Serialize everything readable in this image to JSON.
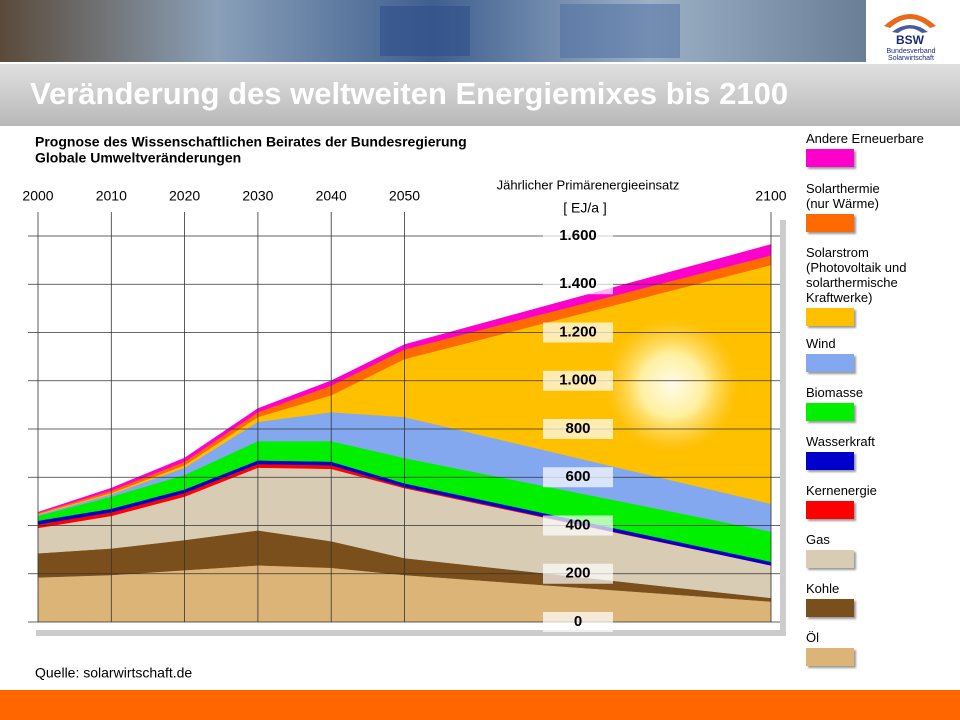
{
  "header": {
    "logo": "BSW",
    "logo_subtitle": "Bundesverband Solarwirtschaft"
  },
  "chart_data": {
    "type": "stacked_area",
    "title": "Veränderung des weltweiten Energiemixes bis 2100",
    "subtitle": [
      "Prognose des Wissenschaftlichen Beirates der Bundesregierung",
      "Globale Umweltveränderungen"
    ],
    "y_label": "Jährlicher Primärenergieeinsatz",
    "y_unit": "[ EJ/a ]",
    "source": "Quelle: solarwirtschaft.de",
    "x": [
      2000,
      2010,
      2020,
      2030,
      2040,
      2050,
      2100
    ],
    "xlim": [
      2000,
      2100
    ],
    "xticks": [
      2000,
      2010,
      2020,
      2030,
      2040,
      2050,
      2100
    ],
    "ylim": [
      0,
      1600
    ],
    "yticks": [
      0,
      200,
      400,
      600,
      800,
      {
        "value": 1000,
        "label": "1.000"
      },
      {
        "value": 1200,
        "label": "1.200"
      },
      {
        "value": 1400,
        "label": "1.400"
      },
      {
        "value": 1600,
        "label": "1.600"
      }
    ],
    "grid": true,
    "series": [
      {
        "name": "Öl",
        "color": "#dcb478",
        "values": [
          185,
          195,
          215,
          235,
          225,
          195,
          85
        ]
      },
      {
        "name": "Kohle",
        "color": "#7b4f1b",
        "values": [
          100,
          110,
          125,
          145,
          110,
          70,
          15
        ]
      },
      {
        "name": "Gas",
        "color": "#d8cdb4",
        "values": [
          105,
          135,
          180,
          260,
          300,
          290,
          135
        ]
      },
      {
        "name": "Kernenergie",
        "color": "#ff0000",
        "values": [
          15,
          15,
          15,
          15,
          15,
          5,
          0
        ]
      },
      {
        "name": "Wasserkraft",
        "color": "#0000cc",
        "values": [
          15,
          15,
          15,
          15,
          15,
          15,
          15
        ]
      },
      {
        "name": "Biomasse",
        "color": "#00f000",
        "values": [
          20,
          50,
          60,
          80,
          85,
          105,
          125
        ]
      },
      {
        "name": "Wind",
        "color": "#84a8f0",
        "values": [
          5,
          10,
          30,
          80,
          120,
          170,
          115
        ]
      },
      {
        "name": "Solarstrom\n(Photovoltaik und\nsolarthermische\nKraftwerke)",
        "color": "#ffc000",
        "values": [
          3,
          5,
          10,
          20,
          70,
          240,
          990
        ]
      },
      {
        "name": "Solarthermie\n(nur Wärme)",
        "color": "#ff6a00",
        "values": [
          4,
          10,
          15,
          20,
          40,
          40,
          40
        ]
      },
      {
        "name": "Andere Erneuerbare",
        "color": "#ff00cc",
        "values": [
          3,
          10,
          15,
          15,
          20,
          20,
          45
        ]
      }
    ]
  }
}
